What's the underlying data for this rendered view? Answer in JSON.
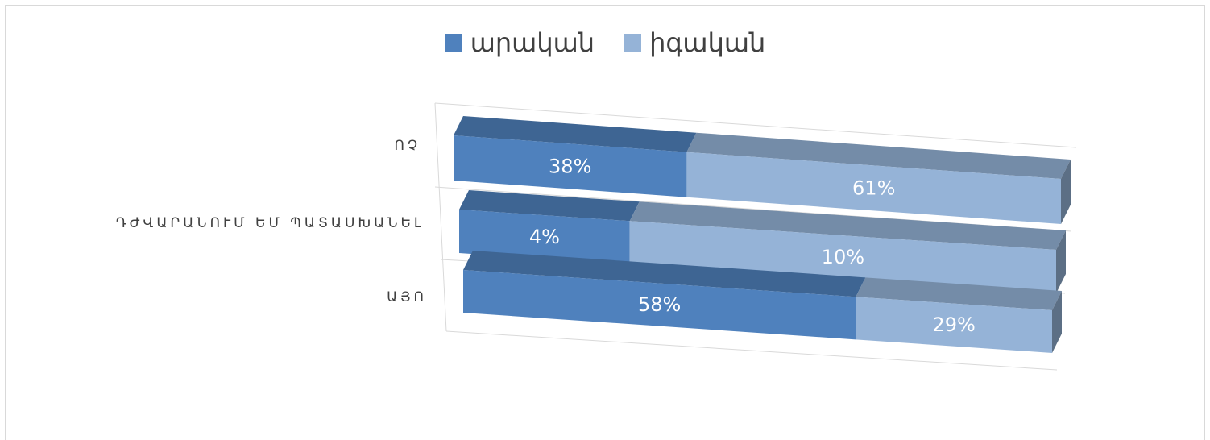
{
  "chart_data": {
    "type": "bar",
    "orientation": "horizontal",
    "stacked": true,
    "style": "3d",
    "categories": [
      "ՈՉ",
      "ԴԺՎԱՐԱՆՈՒՄ ԵՄ ՊԱՏԱՍԽԱՆԵԼ",
      "ԱՅՈ"
    ],
    "series": [
      {
        "name": "արական",
        "values": [
          38,
          4,
          58
        ],
        "labels": [
          "38%",
          "4%",
          "58%"
        ],
        "color": "#4F81BD"
      },
      {
        "name": "իգական",
        "values": [
          61,
          10,
          29
        ],
        "labels": [
          "61%",
          "10%",
          "29%"
        ],
        "color": "#95B3D7"
      }
    ],
    "legend_position": "top",
    "grid": true
  }
}
